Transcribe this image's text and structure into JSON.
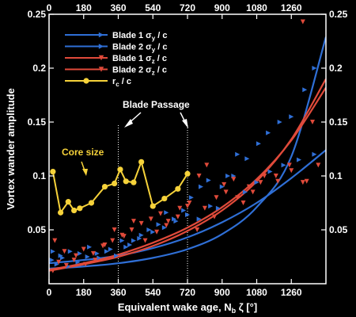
{
  "chart_data": {
    "type": "line",
    "xlabel": "Equivalent wake age, N",
    "xlabel_sub": "b",
    "xlabel_tail": " ζ [°]",
    "ylabel": "Vortex wander amplitude",
    "xlim": [
      0,
      1440
    ],
    "ylim": [
      0,
      0.25
    ],
    "x_ticks": [
      0,
      180,
      360,
      540,
      720,
      900,
      1080,
      1260
    ],
    "x_tick_labels": [
      "0",
      "180",
      "360",
      "540",
      "720",
      "900",
      "1080",
      "1260"
    ],
    "y_ticks": [
      0.05,
      0.1,
      0.15,
      0.2,
      0.25
    ],
    "y_tick_labels": [
      "0.05",
      "0.1",
      "0.15",
      "0.2",
      "0.25"
    ],
    "legend_position": "top-left",
    "colors": {
      "blade1_y": "#2f6fd6",
      "blade2_y": "#2f6fd6",
      "blade1_z": "#e04a3a",
      "blade2_z": "#e04a3a",
      "core": "#f6d23a",
      "vline": "#ffffff"
    },
    "legend": [
      {
        "key": "blade1_y",
        "text": "Blade 1 σ",
        "sub": "y",
        "tail": " / c",
        "marker": "tri-right"
      },
      {
        "key": "blade2_y",
        "text": "Blade 2 σ",
        "sub": "y",
        "tail": " / c",
        "marker": "tri-right"
      },
      {
        "key": "blade1_z",
        "text": "Blade 1 σ",
        "sub": "z",
        "tail": " / c",
        "marker": "tri-down"
      },
      {
        "key": "blade2_z",
        "text": "Blade 2 σ",
        "sub": "z",
        "tail": " / c",
        "marker": "tri-down"
      },
      {
        "key": "core",
        "text": "r",
        "sub": "c",
        "tail": " / c",
        "marker": "circle"
      }
    ],
    "fit_curves": [
      {
        "key": "blade1_y",
        "x": [
          0,
          180,
          360,
          540,
          720,
          900,
          1080,
          1260,
          1440
        ],
        "y": [
          0.014,
          0.016,
          0.019,
          0.024,
          0.032,
          0.046,
          0.071,
          0.118,
          0.229
        ]
      },
      {
        "key": "blade2_y",
        "x": [
          0,
          180,
          360,
          540,
          720,
          900,
          1080,
          1260,
          1440
        ],
        "y": [
          0.019,
          0.022,
          0.026,
          0.033,
          0.043,
          0.057,
          0.075,
          0.098,
          0.124
        ]
      },
      {
        "key": "blade1_z",
        "x": [
          0,
          180,
          360,
          540,
          720,
          900,
          1080,
          1260,
          1440
        ],
        "y": [
          0.012,
          0.018,
          0.025,
          0.035,
          0.049,
          0.068,
          0.095,
          0.134,
          0.19
        ]
      },
      {
        "key": "blade2_z",
        "x": [
          0,
          180,
          360,
          540,
          720,
          900,
          1080,
          1260,
          1440
        ],
        "y": [
          0.013,
          0.019,
          0.027,
          0.038,
          0.052,
          0.071,
          0.097,
          0.133,
          0.182
        ]
      }
    ],
    "scatter": [
      {
        "key": "blade1_y",
        "marker": "tri-right",
        "points": [
          [
            15,
            0.022
          ],
          [
            40,
            0.018
          ],
          [
            70,
            0.024
          ],
          [
            100,
            0.016
          ],
          [
            150,
            0.02
          ],
          [
            200,
            0.025
          ],
          [
            250,
            0.028
          ],
          [
            300,
            0.03
          ],
          [
            350,
            0.026
          ],
          [
            400,
            0.034
          ],
          [
            440,
            0.04
          ],
          [
            480,
            0.045
          ],
          [
            520,
            0.05
          ],
          [
            570,
            0.055
          ],
          [
            610,
            0.066
          ],
          [
            650,
            0.06
          ],
          [
            700,
            0.068
          ],
          [
            740,
            0.08
          ],
          [
            790,
            0.09
          ],
          [
            830,
            0.096
          ],
          [
            880,
            0.07
          ],
          [
            930,
            0.1
          ],
          [
            980,
            0.12
          ],
          [
            1030,
            0.116
          ],
          [
            1090,
            0.13
          ],
          [
            1140,
            0.14
          ],
          [
            1200,
            0.15
          ],
          [
            1260,
            0.155
          ],
          [
            1330,
            0.18
          ],
          [
            1380,
            0.2
          ]
        ]
      },
      {
        "key": "blade2_y",
        "marker": "tri-right",
        "points": [
          [
            20,
            0.03
          ],
          [
            60,
            0.026
          ],
          [
            110,
            0.03
          ],
          [
            160,
            0.028
          ],
          [
            210,
            0.034
          ],
          [
            260,
            0.024
          ],
          [
            320,
            0.032
          ],
          [
            380,
            0.04
          ],
          [
            420,
            0.036
          ],
          [
            470,
            0.042
          ],
          [
            540,
            0.048
          ],
          [
            600,
            0.052
          ],
          [
            660,
            0.058
          ],
          [
            720,
            0.064
          ],
          [
            780,
            0.06
          ],
          [
            840,
            0.072
          ],
          [
            900,
            0.09
          ],
          [
            960,
            0.1
          ],
          [
            1020,
            0.085
          ],
          [
            1080,
            0.094
          ],
          [
            1150,
            0.104
          ],
          [
            1220,
            0.11
          ],
          [
            1300,
            0.115
          ],
          [
            1380,
            0.12
          ]
        ]
      },
      {
        "key": "blade1_z",
        "marker": "tri-down",
        "points": [
          [
            20,
            0.012
          ],
          [
            50,
            0.02
          ],
          [
            90,
            0.017
          ],
          [
            130,
            0.022
          ],
          [
            180,
            0.032
          ],
          [
            230,
            0.028
          ],
          [
            280,
            0.035
          ],
          [
            330,
            0.04
          ],
          [
            380,
            0.045
          ],
          [
            430,
            0.05
          ],
          [
            480,
            0.056
          ],
          [
            530,
            0.06
          ],
          [
            580,
            0.065
          ],
          [
            620,
            0.058
          ],
          [
            680,
            0.07
          ],
          [
            730,
            0.075
          ],
          [
            780,
            0.1
          ],
          [
            820,
            0.11
          ],
          [
            870,
            0.08
          ],
          [
            920,
            0.085
          ],
          [
            980,
            0.08
          ],
          [
            1040,
            0.09
          ],
          [
            1100,
            0.094
          ],
          [
            1180,
            0.1
          ],
          [
            1250,
            0.11
          ],
          [
            1320,
            0.094
          ],
          [
            1370,
            0.15
          ],
          [
            1320,
            0.243
          ]
        ]
      },
      {
        "key": "blade2_z",
        "marker": "tri-down",
        "points": [
          [
            30,
            0.04
          ],
          [
            80,
            0.03
          ],
          [
            140,
            0.026
          ],
          [
            190,
            0.018
          ],
          [
            240,
            0.022
          ],
          [
            290,
            0.036
          ],
          [
            340,
            0.05
          ],
          [
            390,
            0.044
          ],
          [
            440,
            0.058
          ],
          [
            500,
            0.04
          ],
          [
            560,
            0.048
          ],
          [
            610,
            0.054
          ],
          [
            670,
            0.062
          ],
          [
            720,
            0.072
          ],
          [
            770,
            0.05
          ],
          [
            810,
            0.07
          ],
          [
            860,
            0.062
          ],
          [
            910,
            0.092
          ],
          [
            960,
            0.097
          ],
          [
            1010,
            0.075
          ],
          [
            1060,
            0.085
          ],
          [
            1120,
            0.1
          ],
          [
            1190,
            0.095
          ],
          [
            1260,
            0.105
          ],
          [
            1340,
            0.095
          ],
          [
            1400,
            0.11
          ]
        ]
      }
    ],
    "core_size": {
      "key": "core",
      "x": [
        20,
        60,
        100,
        130,
        160,
        220,
        290,
        340,
        370,
        400,
        440,
        480,
        540,
        600,
        670,
        720
      ],
      "y": [
        0.104,
        0.066,
        0.076,
        0.068,
        0.07,
        0.075,
        0.09,
        0.093,
        0.106,
        0.095,
        0.094,
        0.113,
        0.072,
        0.079,
        0.088,
        0.102
      ]
    },
    "vlines": [
      360,
      720
    ],
    "annotations": {
      "core_size": "Core size",
      "blade_passage": "Blade Passage"
    }
  }
}
